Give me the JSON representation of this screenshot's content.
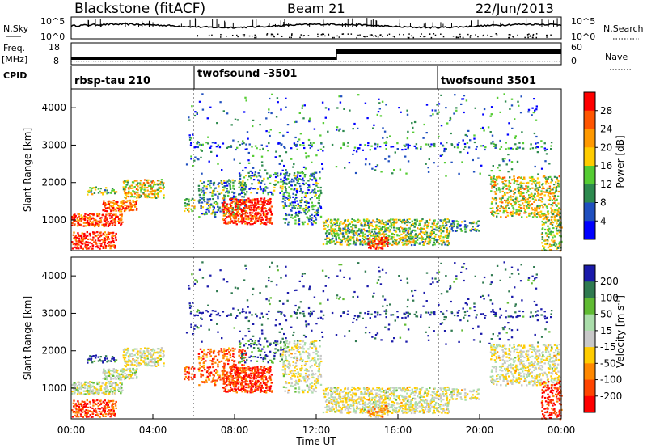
{
  "header": {
    "station": "Blackstone (fitACF)",
    "beam": "Beam 21",
    "date": "22/Jun/2013"
  },
  "noise_panel": {
    "left_label": "N.Sky",
    "left_ticks": [
      "10^5",
      "10^0"
    ],
    "right_ticks": [
      "10^5",
      "10^0"
    ],
    "right_label": "N.Search"
  },
  "freq_panel": {
    "left_label_1": "Freq.",
    "left_label_2": "[MHz]",
    "left_ticks": [
      "18",
      "8"
    ],
    "right_ticks": [
      "60",
      "0"
    ],
    "right_label": "Nave"
  },
  "cpid": {
    "label": "CPID",
    "segments": [
      {
        "name": "rbsp-tau 210",
        "start_hour": 0
      },
      {
        "name": "twofsound -3501",
        "start_hour": 6
      },
      {
        "name": "twofsound 3501",
        "start_hour": 18
      }
    ]
  },
  "chart_data": [
    {
      "type": "heatmap",
      "ylabel": "Slant Range [km]",
      "x_range_hours": [
        0,
        24
      ],
      "ylim": [
        180,
        4500
      ],
      "y_ticks": [
        "4000",
        "3000",
        "2000",
        "1000"
      ],
      "colorbar": {
        "label": "Power [dB]",
        "ticks": [
          "28",
          "24",
          "20",
          "16",
          "12",
          "8",
          "4"
        ],
        "colors": [
          "#ff0000",
          "#ff5500",
          "#ff9900",
          "#ffcc00",
          "#55cc33",
          "#2d8a4e",
          "#1f4fbf",
          "#0000ff"
        ]
      }
    },
    {
      "type": "heatmap",
      "ylabel": "Slant Range [km]",
      "xlabel": "Time UT",
      "x_range_hours": [
        0,
        24
      ],
      "ylim": [
        180,
        4500
      ],
      "y_ticks": [
        "4000",
        "3000",
        "2000",
        "1000"
      ],
      "x_ticks": [
        "00:00",
        "04:00",
        "08:00",
        "12:00",
        "16:00",
        "20:00",
        "00:00"
      ],
      "colorbar": {
        "label": "Velocity [m s^-1]",
        "ticks": [
          "200",
          "100",
          "50",
          "15",
          "-15",
          "-50",
          "-100",
          "-200"
        ],
        "colors": [
          "#1a1aaa",
          "#2f7a50",
          "#60bb33",
          "#aaddaa",
          "#c8c8c8",
          "#ffcc00",
          "#ff8800",
          "#ff4400",
          "#ff0000"
        ]
      }
    }
  ]
}
